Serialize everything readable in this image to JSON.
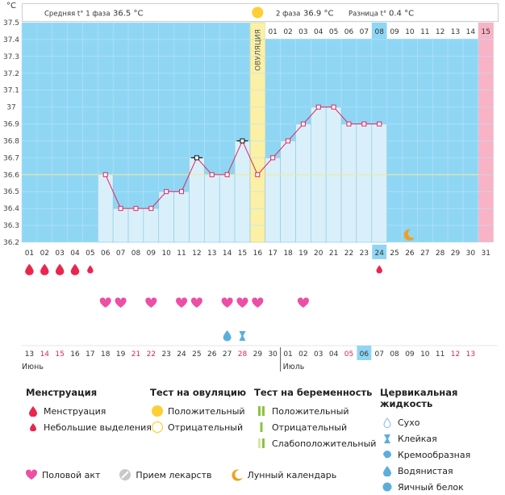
{
  "chart_data": {
    "type": "line",
    "unit_label": "°C",
    "header": {
      "phase1_label": "Средняя t° 1 фаза",
      "phase1_value": "36.5 °C",
      "phase2_label": "2 фаза",
      "phase2_value": "36.9 °C",
      "diff_label": "Разница t°",
      "diff_value": "0.4 °C"
    },
    "ylim": [
      36.2,
      37.5
    ],
    "yticks": [
      "37.5",
      "37.4",
      "37.3",
      "37.2",
      "37.1",
      "37",
      "36.9",
      "36.8",
      "36.7",
      "36.6",
      "36.5",
      "36.4",
      "36.3",
      "36.2"
    ],
    "cover_line": 36.6,
    "ovulation_day": 16,
    "ovulation_label": "ОВУЛЯЦИЯ",
    "cycle_days": [
      "01",
      "02",
      "03",
      "04",
      "05",
      "06",
      "07",
      "08",
      "09",
      "10",
      "11",
      "12",
      "13",
      "14",
      "15",
      "16",
      "17",
      "18",
      "19",
      "20",
      "21",
      "22",
      "23",
      "24",
      "25",
      "26",
      "27",
      "28",
      "29",
      "30",
      "31"
    ],
    "phase2_days": [
      "01",
      "02",
      "03",
      "04",
      "05",
      "06",
      "07",
      "08",
      "10",
      "11",
      "12",
      "13",
      "14"
    ],
    "next_cycle_day": "15",
    "temperatures": [
      {
        "day": 6,
        "t": 36.6
      },
      {
        "day": 7,
        "t": 36.4
      },
      {
        "day": 8,
        "t": 36.4
      },
      {
        "day": 9,
        "t": 36.4
      },
      {
        "day": 10,
        "t": 36.5
      },
      {
        "day": 11,
        "t": 36.5
      },
      {
        "day": 12,
        "t": 36.7,
        "marked": true
      },
      {
        "day": 13,
        "t": 36.6
      },
      {
        "day": 14,
        "t": 36.6
      },
      {
        "day": 15,
        "t": 36.8,
        "marked": true
      },
      {
        "day": 16,
        "t": 36.6
      },
      {
        "day": 17,
        "t": 36.7
      },
      {
        "day": 18,
        "t": 36.8
      },
      {
        "day": 19,
        "t": 36.9
      },
      {
        "day": 20,
        "t": 37.0
      },
      {
        "day": 21,
        "t": 37.0
      },
      {
        "day": 22,
        "t": 36.9
      },
      {
        "day": 23,
        "t": 36.9
      },
      {
        "day": 24,
        "t": 36.9
      }
    ],
    "highlight_day": "24",
    "menstruation_large": [
      1,
      2,
      3,
      4
    ],
    "menstruation_small": [
      5,
      24
    ],
    "intercourse": [
      6,
      7,
      9,
      11,
      12,
      14,
      15,
      16,
      19
    ],
    "cervical_watery": [
      14
    ],
    "cervical_sticky": [
      15
    ],
    "moon": [
      26
    ],
    "dates": [
      {
        "t": "13",
        "red": false
      },
      {
        "t": "14",
        "red": true
      },
      {
        "t": "15",
        "red": true
      },
      {
        "t": "16",
        "red": false
      },
      {
        "t": "17",
        "red": false
      },
      {
        "t": "18",
        "red": false
      },
      {
        "t": "19",
        "red": false
      },
      {
        "t": "21",
        "red": true
      },
      {
        "t": "22",
        "red": true
      },
      {
        "t": "23",
        "red": false
      },
      {
        "t": "24",
        "red": false
      },
      {
        "t": "25",
        "red": false
      },
      {
        "t": "26",
        "red": false
      },
      {
        "t": "27",
        "red": false
      },
      {
        "t": "28",
        "red": true
      },
      {
        "t": "29",
        "red": false
      },
      {
        "t": "30",
        "red": false
      },
      {
        "t": "01",
        "red": false
      },
      {
        "t": "02",
        "red": false
      },
      {
        "t": "03",
        "red": false
      },
      {
        "t": "04",
        "red": false
      },
      {
        "t": "05",
        "red": true
      },
      {
        "t": "06",
        "red": false,
        "hl": true
      },
      {
        "t": "07",
        "red": false
      },
      {
        "t": "08",
        "red": false
      },
      {
        "t": "09",
        "red": false
      },
      {
        "t": "10",
        "red": false
      },
      {
        "t": "11",
        "red": false
      },
      {
        "t": "12",
        "red": true
      },
      {
        "t": "13",
        "red": true
      }
    ],
    "month1": "Июнь",
    "month2": "Июль",
    "month2_start_index": 17
  },
  "legend": {
    "menstruation": {
      "title": "Менструация",
      "items": [
        "Менструация",
        "Небольшие выделения"
      ]
    },
    "ovulation_test": {
      "title": "Тест на овуляцию",
      "items": [
        "Положительный",
        "Отрицательный"
      ]
    },
    "pregnancy_test": {
      "title": "Тест на беременность",
      "items": [
        "Положительный",
        "Отрицательный",
        "Слабоположительный"
      ]
    },
    "cervical": {
      "title": "Цервикальная жидкость",
      "items": [
        "Сухо",
        "Клейкая",
        "Кремообразная",
        "Водянистая",
        "Яичный белок"
      ]
    },
    "bottom": [
      "Половой акт",
      "Прием лекарств",
      "Лунный календарь"
    ]
  },
  "colors": {
    "plot_bg": "#8fd6f4",
    "bar": "#d9f0fb",
    "bar_border": "#8cc6e0",
    "line": "#e0245e",
    "ovulation": "#fbf0a5",
    "ovulation_border": "#e6c84a",
    "next_cycle": "#f8b3c6",
    "heart": "#ec4fa6",
    "drop": "#e8274f",
    "cover": "#f0e89a",
    "highlight": "#8fd6f4"
  }
}
